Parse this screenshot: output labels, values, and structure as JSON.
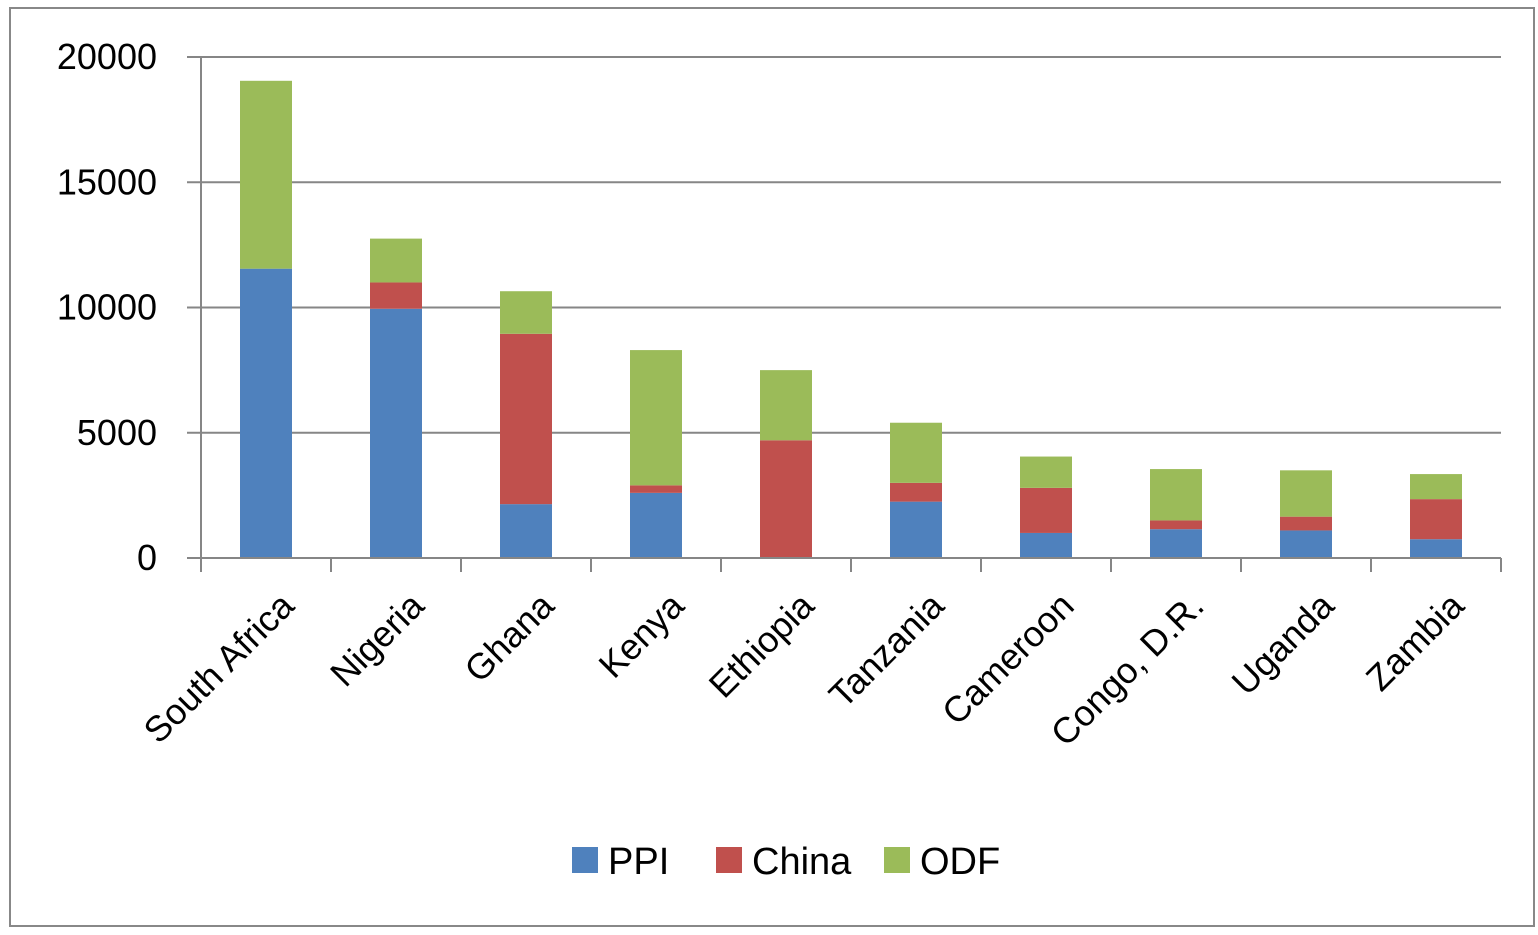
{
  "chart_data": {
    "type": "bar",
    "stacked": true,
    "title": "",
    "xlabel": "",
    "ylabel": "",
    "ylim": [
      0,
      20000
    ],
    "yticks": [
      0,
      5000,
      10000,
      15000,
      20000
    ],
    "ytick_labels": [
      "0",
      "5000",
      "10000",
      "15000",
      "20000"
    ],
    "grid": true,
    "legend_position": "bottom",
    "categories": [
      "South Africa",
      "Nigeria",
      "Ghana",
      "Kenya",
      "Ethiopia",
      "Tanzania",
      "Cameroon",
      "Congo, D.R.",
      "Uganda",
      "Zambia"
    ],
    "series": [
      {
        "name": "PPI",
        "color": "#4f81bd",
        "values": [
          11550,
          9950,
          2150,
          2600,
          0,
          2250,
          1000,
          1150,
          1100,
          750
        ]
      },
      {
        "name": "China",
        "color": "#c0504d",
        "values": [
          0,
          1050,
          6800,
          300,
          4700,
          750,
          1800,
          350,
          550,
          1600
        ]
      },
      {
        "name": "ODF",
        "color": "#9bbb59",
        "values": [
          7500,
          1750,
          1700,
          5400,
          2800,
          2400,
          1250,
          2050,
          1850,
          1000
        ]
      }
    ]
  }
}
